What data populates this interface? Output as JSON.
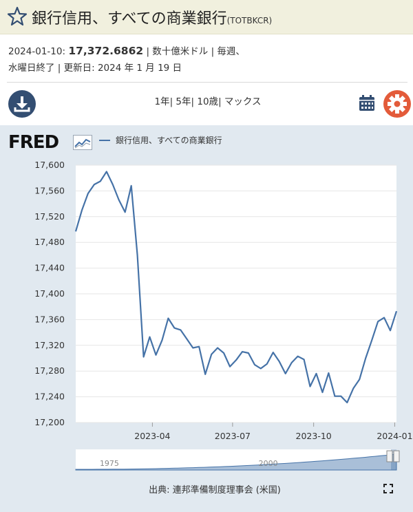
{
  "header": {
    "title": "銀行信用、すべての商業銀行",
    "series_code": "(TOTBKCR)",
    "star_icon": "star-outline-icon"
  },
  "meta": {
    "date": "2024-01-10:",
    "value": "17,372.6862",
    "units_line1": "| 数十億米ドル | 毎週、",
    "units_line2": "水曜日終了 | 更新日: 2024 年 1 月 19 日"
  },
  "toolbar": {
    "download_icon": "download-icon",
    "range_1y": "1年",
    "range_5y": "5年",
    "range_10y": "10歳",
    "range_max": "マックス",
    "sep": "|",
    "calendar_icon": "calendar-icon",
    "settings_icon": "gear-icon"
  },
  "chart": {
    "brand": "FRED",
    "legend": "銀行信用、すべての商業銀行",
    "source": "出典: 連邦準備制度理事会 (米国)",
    "fullscreen_icon": "fullscreen-icon",
    "series_color": "#4572a7"
  },
  "chart_data": {
    "type": "line",
    "x_start": "2023-01-04",
    "x_step_days": 7,
    "xticks": [
      "2023-04",
      "2023-07",
      "2023-10",
      "2024-01"
    ],
    "xtick_dates": [
      "2023-04-01",
      "2023-07-01",
      "2023-10-01",
      "2024-01-01"
    ],
    "ylim": [
      17200,
      17600
    ],
    "yticks": [
      "17,200",
      "17,240",
      "17,280",
      "17,320",
      "17,360",
      "17,400",
      "17,440",
      "17,480",
      "17,520",
      "17,560",
      "17,600"
    ],
    "series": [
      {
        "values": [
          17497,
          17530,
          17556,
          17570,
          17575,
          17590,
          17570,
          17546,
          17527,
          17568,
          17460,
          17302,
          17333,
          17305,
          17328,
          17362,
          17347,
          17344,
          17330,
          17316,
          17318,
          17275,
          17306,
          17316,
          17308,
          17287,
          17297,
          17310,
          17308,
          17290,
          17284,
          17291,
          17309,
          17295,
          17276,
          17293,
          17303,
          17298,
          17256,
          17276,
          17247,
          17277,
          17241,
          17241,
          17231,
          17253,
          17267,
          17300,
          17328,
          17357,
          17363,
          17343,
          17373
        ]
      }
    ],
    "navigator": {
      "labels": [
        "1975",
        "2000"
      ]
    }
  }
}
